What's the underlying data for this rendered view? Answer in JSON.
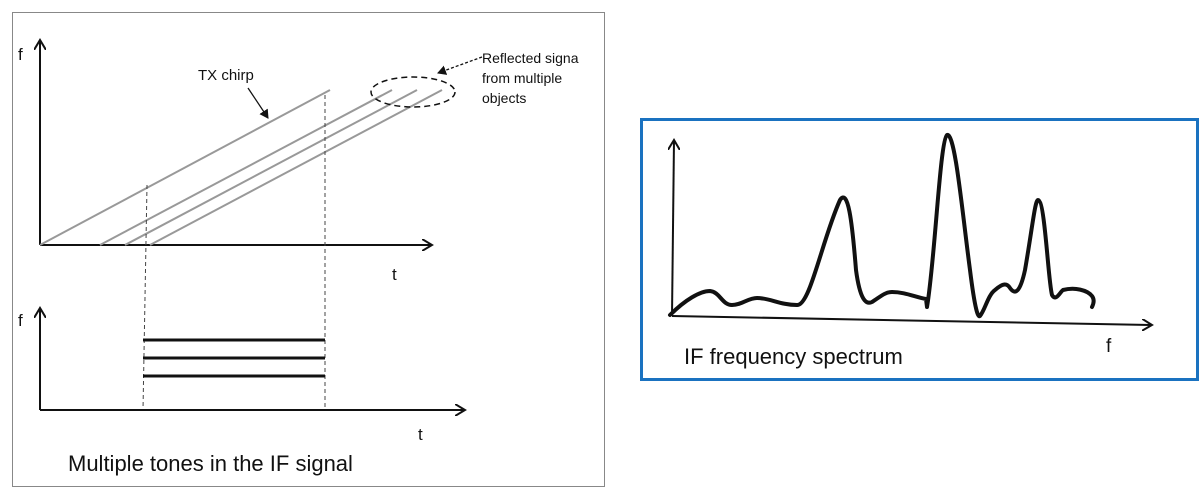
{
  "left_panel": {
    "top_plot": {
      "y_axis_label": "f",
      "x_axis_label": "t",
      "tx_label": "TX chirp",
      "reflected_label": [
        "Reflected signa",
        "from multiple",
        "objects"
      ]
    },
    "bottom_plot": {
      "y_axis_label": "f",
      "x_axis_label": "t"
    },
    "caption": "Multiple tones in the IF signal"
  },
  "right_panel": {
    "caption": "IF frequency spectrum",
    "x_axis_label": "f",
    "border_color": "#1a72c0"
  }
}
